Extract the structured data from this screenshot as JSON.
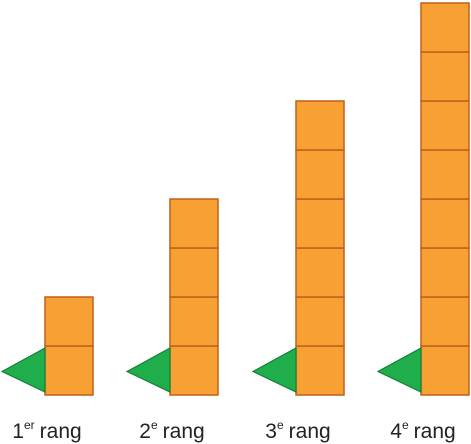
{
  "ranks": [
    {
      "number": "1",
      "suffix": "er",
      "word": "rang"
    },
    {
      "number": "2",
      "suffix": "e",
      "word": "rang"
    },
    {
      "number": "3",
      "suffix": "e",
      "word": "rang"
    },
    {
      "number": "4",
      "suffix": "e",
      "word": "rang"
    }
  ]
}
